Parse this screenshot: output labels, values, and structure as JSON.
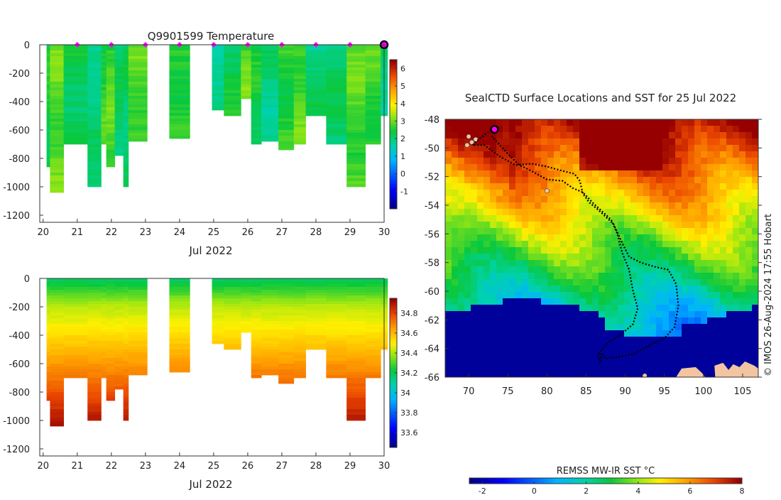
{
  "top_title": "Q9901599  Temperature",
  "map_title": "SealCTD Surface Locations and SST for 25 Jul 2022",
  "sst_label": "REMSS MW-IR SST °C",
  "credit": "© IMOS 26-Aug-2024 17:55 Hobart",
  "colors": {
    "marker": "#ff00ff",
    "track": "#000000",
    "land": "#f2c4a0",
    "ice": "#00009a"
  },
  "chart_data": [
    {
      "type": "heatmap",
      "name": "temperature-profiles",
      "title": "Q9901599  Temperature",
      "xlabel": "Jul 2022",
      "ylabel": "",
      "xlim": [
        20,
        30
      ],
      "ylim": [
        -1250,
        0
      ],
      "x_ticks": [
        "20",
        "21",
        "22",
        "23",
        "24",
        "25",
        "26",
        "27",
        "28",
        "29",
        "30"
      ],
      "y_ticks": [
        "0",
        "-200",
        "-400",
        "-600",
        "-800",
        "-1000",
        "-1200"
      ],
      "colorbar_ticks": [
        "6",
        "5",
        "4",
        "3",
        "2",
        "1",
        "0",
        "-1"
      ],
      "colorbar_range": [
        -2,
        6.5
      ],
      "surface_markers_day": [
        21,
        22,
        23,
        24,
        25,
        26,
        27,
        28,
        29
      ],
      "latest_marker_day": 30,
      "profiles": [
        {
          "x0": 20.1,
          "x1": 20.2,
          "depth": 850
        },
        {
          "x0": 20.2,
          "x1": 20.6,
          "depth": 1040
        },
        {
          "x0": 20.6,
          "x1": 21.3,
          "depth": 700
        },
        {
          "x0": 21.3,
          "x1": 21.7,
          "depth": 1000
        },
        {
          "x0": 21.7,
          "x1": 21.85,
          "depth": 700
        },
        {
          "x0": 21.85,
          "x1": 22.1,
          "depth": 860
        },
        {
          "x0": 22.1,
          "x1": 22.35,
          "depth": 770
        },
        {
          "x0": 22.35,
          "x1": 22.5,
          "depth": 1000
        },
        {
          "x0": 22.5,
          "x1": 23.05,
          "depth": 680
        },
        {
          "x0": 23.7,
          "x1": 24.3,
          "depth": 650
        },
        {
          "x0": 24.95,
          "x1": 25.3,
          "depth": 460
        },
        {
          "x0": 25.3,
          "x1": 25.8,
          "depth": 500
        },
        {
          "x0": 25.8,
          "x1": 26.1,
          "depth": 380
        },
        {
          "x0": 26.1,
          "x1": 26.4,
          "depth": 700
        },
        {
          "x0": 26.4,
          "x1": 26.9,
          "depth": 670
        },
        {
          "x0": 26.9,
          "x1": 27.35,
          "depth": 740
        },
        {
          "x0": 27.35,
          "x1": 27.7,
          "depth": 700
        },
        {
          "x0": 27.7,
          "x1": 28.3,
          "depth": 500
        },
        {
          "x0": 28.3,
          "x1": 28.9,
          "depth": 700
        },
        {
          "x0": 28.9,
          "x1": 29.45,
          "depth": 1000
        },
        {
          "x0": 29.45,
          "x1": 29.9,
          "depth": 700
        },
        {
          "x0": 29.9,
          "x1": 30.1,
          "depth": 500
        }
      ]
    },
    {
      "type": "heatmap",
      "name": "salinity-profiles",
      "title": "",
      "xlabel": "Jul 2022",
      "ylabel": "",
      "xlim": [
        20,
        30
      ],
      "ylim": [
        -1250,
        0
      ],
      "x_ticks": [
        "20",
        "21",
        "22",
        "23",
        "24",
        "25",
        "26",
        "27",
        "28",
        "29",
        "30"
      ],
      "y_ticks": [
        "0",
        "-200",
        "-400",
        "-600",
        "-800",
        "-1000",
        "-1200"
      ],
      "colorbar_ticks": [
        "34.8",
        "34.6",
        "34.4",
        "34.2",
        "34",
        "33.8",
        "33.6"
      ],
      "colorbar_range": [
        33.45,
        34.95
      ]
    },
    {
      "type": "heatmap",
      "name": "sst-map",
      "title": "SealCTD Surface Locations and SST for 25 Jul 2022",
      "xlabel": "",
      "ylabel": "",
      "xlim": [
        67,
        107
      ],
      "ylim": [
        -66,
        -48
      ],
      "x_ticks": [
        "70",
        "75",
        "80",
        "85",
        "90",
        "95",
        "100",
        "105"
      ],
      "y_ticks": [
        "-48",
        "-50",
        "-52",
        "-54",
        "-56",
        "-58",
        "-60",
        "-62",
        "-64",
        "-66"
      ],
      "colorbar_label": "REMSS MW-IR SST °C",
      "colorbar_ticks": [
        "-2",
        "0",
        "2",
        "4",
        "6",
        "8"
      ],
      "colorbar_range": [
        -2.5,
        8
      ],
      "current_position": [
        73.3,
        -48.7
      ],
      "track": [
        [
          73.3,
          -48.7
        ],
        [
          72.5,
          -48.9
        ],
        [
          71.5,
          -49.3
        ],
        [
          70.5,
          -49.8
        ],
        [
          72,
          -49.8
        ],
        [
          74,
          -50.6
        ],
        [
          76,
          -51.2
        ],
        [
          78,
          -51.1
        ],
        [
          80,
          -51.3
        ],
        [
          82,
          -51.6
        ],
        [
          83.5,
          -51.8
        ],
        [
          84.2,
          -52.3
        ],
        [
          84.6,
          -53.2
        ],
        [
          85.4,
          -53.8
        ],
        [
          86.5,
          -54.3
        ],
        [
          87.5,
          -54.8
        ],
        [
          88.5,
          -55.3
        ],
        [
          89.5,
          -56.5
        ],
        [
          90.5,
          -57.6
        ],
        [
          92,
          -58
        ],
        [
          93.8,
          -58.3
        ],
        [
          95.5,
          -58.5
        ],
        [
          96.5,
          -59.5
        ],
        [
          96.8,
          -61
        ],
        [
          96.3,
          -62.5
        ],
        [
          95,
          -63.3
        ],
        [
          93,
          -63.8
        ],
        [
          91,
          -64.4
        ],
        [
          89,
          -64.6
        ],
        [
          87.5,
          -64.7
        ],
        [
          87,
          -64.3
        ],
        [
          86.8,
          -65
        ],
        [
          86.5,
          -64.4
        ],
        [
          87.8,
          -63.6
        ],
        [
          89.5,
          -63
        ],
        [
          91,
          -62.3
        ],
        [
          91.6,
          -61.2
        ],
        [
          91,
          -60
        ],
        [
          90.5,
          -58.5
        ],
        [
          89.6,
          -57.3
        ],
        [
          89,
          -56
        ],
        [
          88.2,
          -55
        ],
        [
          87,
          -54.4
        ],
        [
          85.8,
          -53.8
        ],
        [
          84.6,
          -53.1
        ],
        [
          83.3,
          -52.8
        ],
        [
          82,
          -52.3
        ],
        [
          80,
          -52.2
        ],
        [
          78,
          -51.6
        ],
        [
          76.5,
          -51.2
        ],
        [
          75,
          -50.4
        ],
        [
          73.5,
          -49.5
        ],
        [
          72.8,
          -49.1
        ]
      ],
      "land_points": [
        [
          70,
          -49.2
        ],
        [
          70.4,
          -49.6
        ],
        [
          69.8,
          -49.8
        ],
        [
          70.9,
          -49.4
        ],
        [
          80,
          -53
        ],
        [
          92.5,
          -65.9
        ]
      ]
    }
  ]
}
